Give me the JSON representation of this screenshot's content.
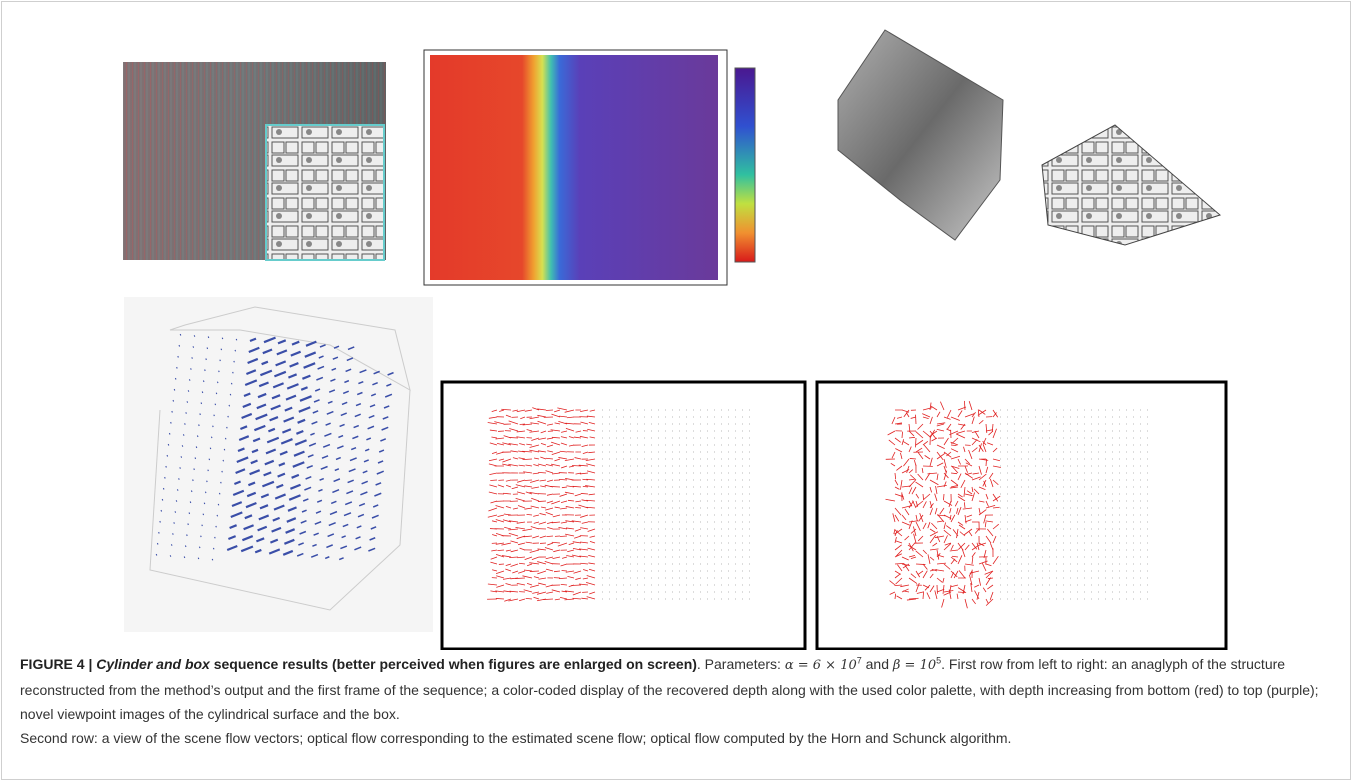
{
  "figure": {
    "label": "FIGURE 4 |",
    "title_italic": "Cylinder and box",
    "title_rest": "sequence results (better perceived when figures are enlarged on screen)",
    "params_intro": ". Parameters:",
    "alpha_expr": "α = 6 × 10",
    "alpha_exp": "7",
    "and": "and",
    "beta_expr": "β = 10",
    "beta_exp": "5",
    "first_row": ". First row from left to right: an anaglyph of the structure reconstructed from the method’s output and the first frame of the sequence; a color-coded display of the recovered depth along with the used color palette, with depth increasing from bottom (red) to top (purple); novel viewpoint images of the cylindrical surface and the box.",
    "second_row": "Second row: a view of the scene flow vectors; optical flow corresponding to the estimated scene flow; optical flow computed by the Horn and Schunck algorithm."
  }
}
